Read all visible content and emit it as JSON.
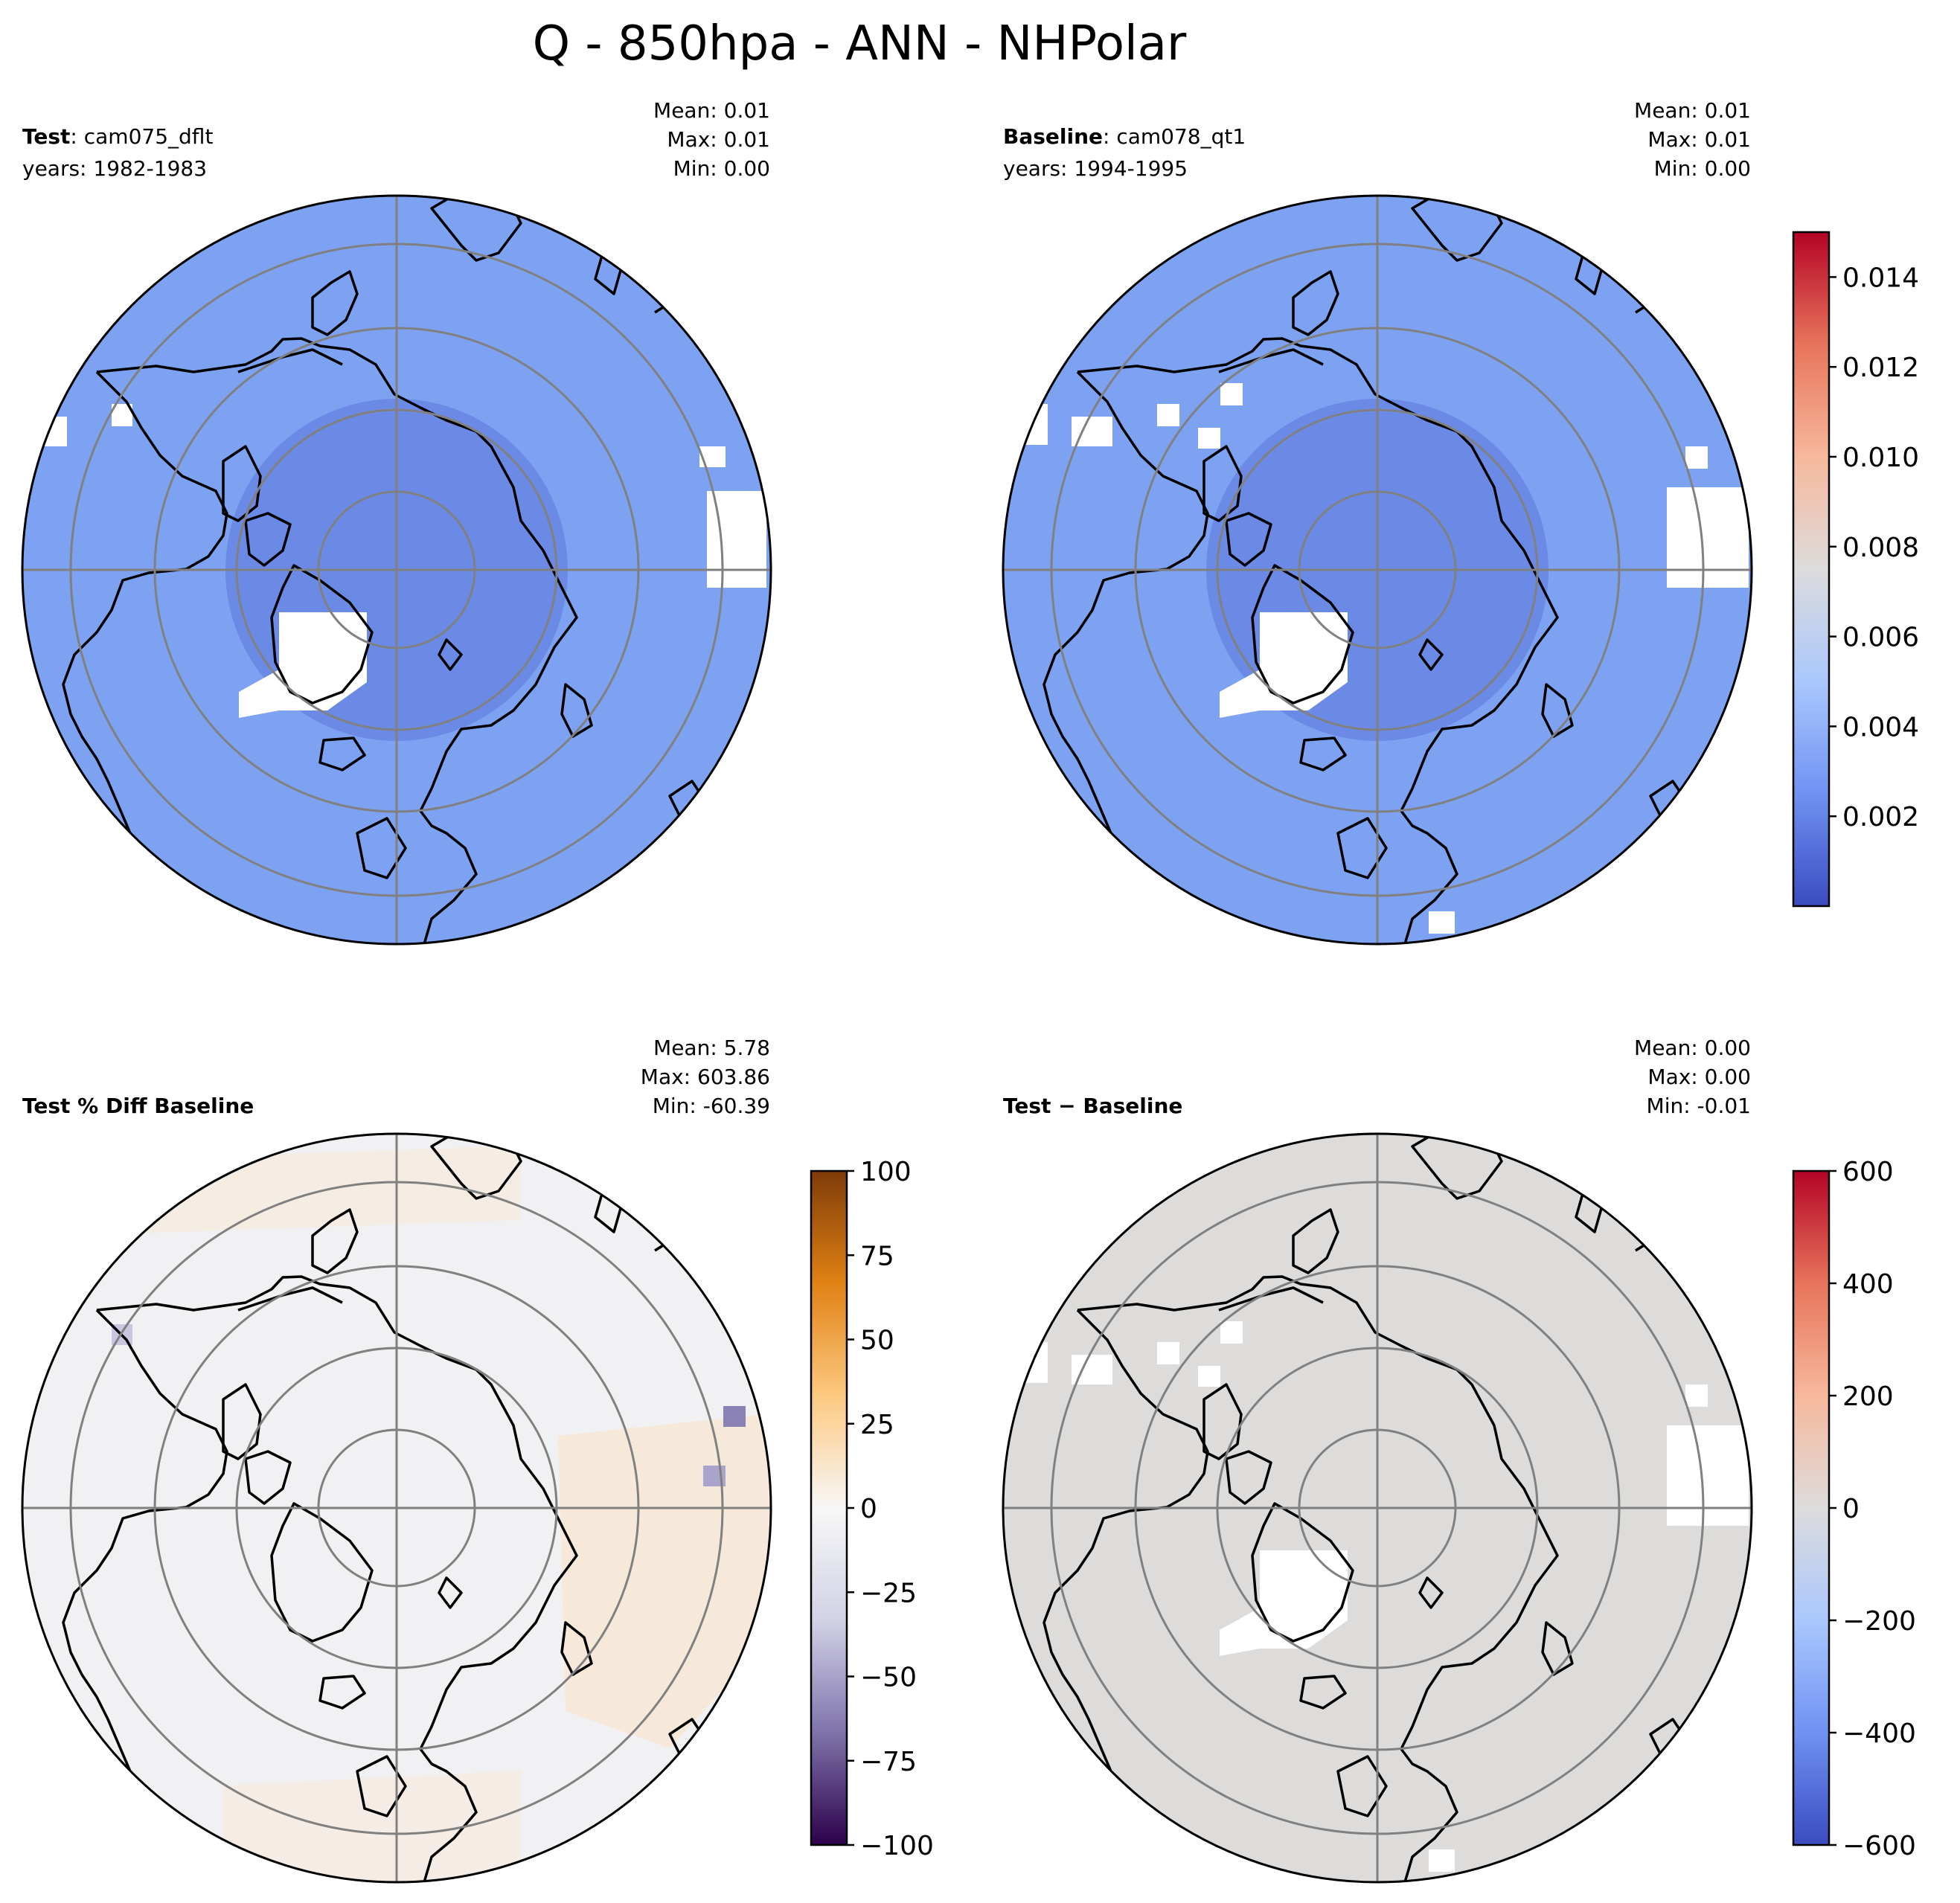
{
  "title": "Q - 850hpa - ANN - NHPolar",
  "panels": [
    {
      "id": "test",
      "label_bold": "Test",
      "label_rest": ": cam075_dflt",
      "label_line2": "years: 1982-1983",
      "stats": {
        "mean": "Mean:  0.01",
        "max": "Max:  0.01",
        "min": "Min:  0.00"
      },
      "fill": "#7ea2f2"
    },
    {
      "id": "baseline",
      "label_bold": "Baseline",
      "label_rest": ": cam078_qt1",
      "label_line2": "years: 1994-1995",
      "stats": {
        "mean": "Mean:  0.01",
        "max": "Max:  0.01",
        "min": "Min:  0.00"
      },
      "fill": "#7ea2f2"
    },
    {
      "id": "pct-diff",
      "label_bold": "Test % Diff Baseline",
      "label_rest": "",
      "label_line2": "",
      "stats": {
        "mean": "Mean:  5.78",
        "max": "Max: 603.86",
        "min": "Min: -60.39"
      },
      "fill": "#f1f0f2"
    },
    {
      "id": "diff",
      "label_bold": "Test",
      "label_rest": " − Baseline",
      "label_line2": "",
      "stats": {
        "mean": "Mean:  0.00",
        "max": "Max:  0.00",
        "min": "Min: -0.01"
      },
      "fill": "#dddcdb"
    }
  ],
  "colorbars": [
    {
      "id": "cb-main",
      "colormap": [
        "#3b4cc0",
        "#6f92f3",
        "#aac7fd",
        "#dddcdc",
        "#f7b89c",
        "#e7745b",
        "#b40426"
      ],
      "range": [
        0,
        0.015
      ],
      "ticks": [
        "0.002",
        "0.004",
        "0.006",
        "0.008",
        "0.010",
        "0.012",
        "0.014"
      ]
    },
    {
      "id": "cb-pct",
      "colormap": [
        "#2d004b",
        "#7f73ac",
        "#d2d2e6",
        "#f7f7f7",
        "#fdc981",
        "#e08214",
        "#7f3b08"
      ],
      "range": [
        -100,
        100
      ],
      "ticks": [
        "−100",
        "−75",
        "−50",
        "−25",
        "0",
        "25",
        "50",
        "75",
        "100"
      ]
    },
    {
      "id": "cb-diff",
      "colormap": [
        "#3b4cc0",
        "#6f92f3",
        "#aac7fd",
        "#dddcdc",
        "#f7b89c",
        "#e7745b",
        "#b40426"
      ],
      "range": [
        -600,
        600
      ],
      "ticks": [
        "−600",
        "−400",
        "−200",
        "0",
        "200",
        "400",
        "600"
      ]
    }
  ]
}
